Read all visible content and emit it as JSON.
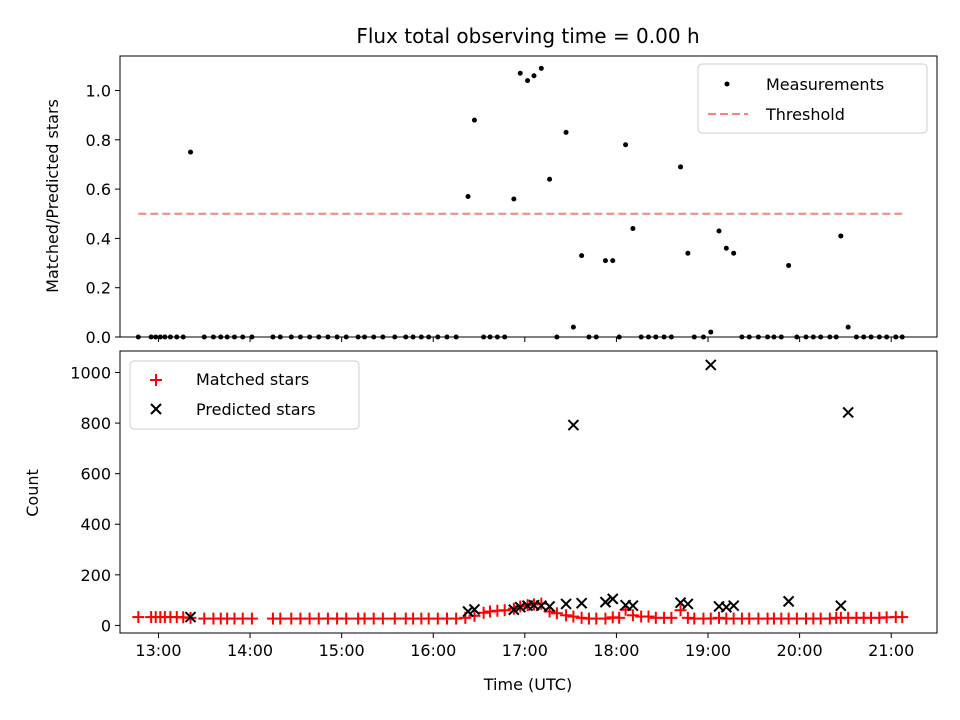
{
  "chart_data": [
    {
      "type": "scatter",
      "title": "Flux total observing time = 0.00 h",
      "xlabel": "",
      "ylabel": "Matched/Predicted stars",
      "xlim": [
        12.58,
        21.5
      ],
      "ylim": [
        0,
        1.14
      ],
      "xticks": [
        13,
        14,
        15,
        16,
        17,
        18,
        19,
        20,
        21
      ],
      "xtick_labels": [
        "",
        "",
        "",
        "",
        "",
        "",
        "",
        "",
        ""
      ],
      "yticks": [
        0,
        0.2,
        0.4,
        0.6,
        0.8,
        1.0
      ],
      "ytick_labels": [
        "0.0",
        "0.2",
        "0.4",
        "0.6",
        "0.8",
        "1.0"
      ],
      "legend_position": "top-right",
      "series": [
        {
          "name": "Measurements",
          "style": "dot",
          "color": "#000000",
          "points": [
            [
              12.78,
              0
            ],
            [
              12.92,
              0
            ],
            [
              12.97,
              0
            ],
            [
              13.02,
              0
            ],
            [
              13.07,
              0
            ],
            [
              13.13,
              0
            ],
            [
              13.2,
              0
            ],
            [
              13.27,
              0
            ],
            [
              13.35,
              0.75
            ],
            [
              13.5,
              0
            ],
            [
              13.6,
              0
            ],
            [
              13.68,
              0
            ],
            [
              13.75,
              0
            ],
            [
              13.83,
              0
            ],
            [
              13.92,
              0
            ],
            [
              14.02,
              0
            ],
            [
              14.25,
              0
            ],
            [
              14.33,
              0
            ],
            [
              14.45,
              0
            ],
            [
              14.55,
              0
            ],
            [
              14.65,
              0
            ],
            [
              14.75,
              0
            ],
            [
              14.85,
              0
            ],
            [
              14.95,
              0
            ],
            [
              15.05,
              0
            ],
            [
              15.18,
              0
            ],
            [
              15.25,
              0
            ],
            [
              15.35,
              0
            ],
            [
              15.45,
              0
            ],
            [
              15.58,
              0
            ],
            [
              15.7,
              0
            ],
            [
              15.78,
              0
            ],
            [
              15.87,
              0
            ],
            [
              15.95,
              0
            ],
            [
              16.05,
              0
            ],
            [
              16.15,
              0
            ],
            [
              16.25,
              0
            ],
            [
              16.38,
              0.57
            ],
            [
              16.45,
              0.88
            ],
            [
              16.55,
              0
            ],
            [
              16.62,
              0
            ],
            [
              16.7,
              0
            ],
            [
              16.78,
              0
            ],
            [
              16.88,
              0.56
            ],
            [
              16.95,
              1.07
            ],
            [
              17.03,
              1.04
            ],
            [
              17.1,
              1.06
            ],
            [
              17.18,
              1.09
            ],
            [
              17.27,
              0.64
            ],
            [
              17.35,
              0
            ],
            [
              17.45,
              0.83
            ],
            [
              17.53,
              0.04
            ],
            [
              17.62,
              0.33
            ],
            [
              17.7,
              0
            ],
            [
              17.78,
              0
            ],
            [
              17.88,
              0.31
            ],
            [
              17.96,
              0.31
            ],
            [
              18.03,
              0
            ],
            [
              18.1,
              0.78
            ],
            [
              18.18,
              0.44
            ],
            [
              18.27,
              0
            ],
            [
              18.35,
              0
            ],
            [
              18.43,
              0
            ],
            [
              18.52,
              0
            ],
            [
              18.6,
              0
            ],
            [
              18.7,
              0.69
            ],
            [
              18.78,
              0.34
            ],
            [
              18.85,
              0
            ],
            [
              18.95,
              0
            ],
            [
              19.03,
              0.02
            ],
            [
              19.12,
              0.43
            ],
            [
              19.2,
              0.36
            ],
            [
              19.28,
              0.34
            ],
            [
              19.37,
              0
            ],
            [
              19.45,
              0
            ],
            [
              19.55,
              0
            ],
            [
              19.65,
              0
            ],
            [
              19.72,
              0
            ],
            [
              19.8,
              0
            ],
            [
              19.88,
              0.29
            ],
            [
              19.97,
              0
            ],
            [
              20.07,
              0
            ],
            [
              20.15,
              0
            ],
            [
              20.23,
              0
            ],
            [
              20.33,
              0
            ],
            [
              20.4,
              0
            ],
            [
              20.45,
              0.41
            ],
            [
              20.53,
              0.04
            ],
            [
              20.62,
              0
            ],
            [
              20.7,
              0
            ],
            [
              20.78,
              0
            ],
            [
              20.87,
              0
            ],
            [
              20.95,
              0
            ],
            [
              21.05,
              0
            ],
            [
              21.12,
              0
            ]
          ]
        },
        {
          "name": "Threshold",
          "style": "dashed-line",
          "color": "#ff7f7f",
          "points": [
            [
              12.78,
              0.5
            ],
            [
              21.12,
              0.5
            ]
          ]
        }
      ]
    },
    {
      "type": "scatter",
      "title": "",
      "xlabel": "Time (UTC)",
      "ylabel": "Count",
      "xlim": [
        12.58,
        21.5
      ],
      "ylim": [
        -30,
        1085
      ],
      "xticks": [
        13,
        14,
        15,
        16,
        17,
        18,
        19,
        20,
        21
      ],
      "xtick_labels": [
        "13:00",
        "14:00",
        "15:00",
        "16:00",
        "17:00",
        "18:00",
        "19:00",
        "20:00",
        "21:00"
      ],
      "yticks": [
        0,
        200,
        400,
        600,
        800,
        1000
      ],
      "ytick_labels": [
        "0",
        "200",
        "400",
        "600",
        "800",
        "1000"
      ],
      "legend_position": "top-left",
      "series": [
        {
          "name": "Matched stars",
          "style": "plus",
          "color": "#ff0000",
          "points": [
            [
              12.78,
              33
            ],
            [
              12.92,
              33
            ],
            [
              12.97,
              33
            ],
            [
              13.02,
              33
            ],
            [
              13.07,
              33
            ],
            [
              13.13,
              33
            ],
            [
              13.2,
              33
            ],
            [
              13.27,
              32
            ],
            [
              13.35,
              30
            ],
            [
              13.5,
              27
            ],
            [
              13.6,
              27
            ],
            [
              13.68,
              27
            ],
            [
              13.75,
              27
            ],
            [
              13.83,
              27
            ],
            [
              13.92,
              27
            ],
            [
              14.02,
              27
            ],
            [
              14.25,
              27
            ],
            [
              14.33,
              27
            ],
            [
              14.45,
              27
            ],
            [
              14.55,
              27
            ],
            [
              14.65,
              27
            ],
            [
              14.75,
              27
            ],
            [
              14.85,
              27
            ],
            [
              14.95,
              27
            ],
            [
              15.05,
              27
            ],
            [
              15.18,
              27
            ],
            [
              15.25,
              27
            ],
            [
              15.35,
              27
            ],
            [
              15.45,
              27
            ],
            [
              15.58,
              27
            ],
            [
              15.7,
              27
            ],
            [
              15.78,
              27
            ],
            [
              15.87,
              27
            ],
            [
              15.95,
              27
            ],
            [
              16.05,
              27
            ],
            [
              16.15,
              27
            ],
            [
              16.25,
              27
            ],
            [
              16.35,
              30
            ],
            [
              16.45,
              38
            ],
            [
              16.55,
              50
            ],
            [
              16.62,
              55
            ],
            [
              16.7,
              58
            ],
            [
              16.78,
              60
            ],
            [
              16.88,
              66
            ],
            [
              16.95,
              75
            ],
            [
              17.03,
              80
            ],
            [
              17.1,
              83
            ],
            [
              17.18,
              86
            ],
            [
              17.27,
              55
            ],
            [
              17.35,
              48
            ],
            [
              17.45,
              40
            ],
            [
              17.53,
              35
            ],
            [
              17.62,
              30
            ],
            [
              17.7,
              27
            ],
            [
              17.78,
              27
            ],
            [
              17.88,
              27
            ],
            [
              17.96,
              32
            ],
            [
              18.03,
              30
            ],
            [
              18.1,
              62
            ],
            [
              18.18,
              40
            ],
            [
              18.27,
              35
            ],
            [
              18.35,
              35
            ],
            [
              18.43,
              30
            ],
            [
              18.52,
              30
            ],
            [
              18.6,
              30
            ],
            [
              18.7,
              60
            ],
            [
              18.78,
              30
            ],
            [
              18.85,
              27
            ],
            [
              18.95,
              27
            ],
            [
              19.03,
              27
            ],
            [
              19.12,
              30
            ],
            [
              19.2,
              27
            ],
            [
              19.28,
              27
            ],
            [
              19.37,
              27
            ],
            [
              19.45,
              27
            ],
            [
              19.55,
              27
            ],
            [
              19.65,
              27
            ],
            [
              19.72,
              27
            ],
            [
              19.8,
              27
            ],
            [
              19.88,
              27
            ],
            [
              19.97,
              27
            ],
            [
              20.07,
              27
            ],
            [
              20.15,
              27
            ],
            [
              20.23,
              27
            ],
            [
              20.33,
              27
            ],
            [
              20.4,
              30
            ],
            [
              20.45,
              30
            ],
            [
              20.53,
              30
            ],
            [
              20.62,
              30
            ],
            [
              20.7,
              30
            ],
            [
              20.78,
              30
            ],
            [
              20.87,
              30
            ],
            [
              20.95,
              32
            ],
            [
              21.05,
              33
            ],
            [
              21.12,
              33
            ]
          ]
        },
        {
          "name": "Predicted stars",
          "style": "x",
          "color": "#000000",
          "points": [
            [
              13.35,
              33
            ],
            [
              16.38,
              55
            ],
            [
              16.45,
              63
            ],
            [
              16.88,
              62
            ],
            [
              16.95,
              72
            ],
            [
              17.03,
              78
            ],
            [
              17.1,
              80
            ],
            [
              17.18,
              78
            ],
            [
              17.27,
              75
            ],
            [
              17.45,
              85
            ],
            [
              17.53,
              792
            ],
            [
              17.62,
              88
            ],
            [
              17.88,
              92
            ],
            [
              17.96,
              105
            ],
            [
              18.1,
              80
            ],
            [
              18.18,
              78
            ],
            [
              18.7,
              90
            ],
            [
              18.78,
              85
            ],
            [
              19.03,
              1030
            ],
            [
              19.12,
              75
            ],
            [
              19.2,
              72
            ],
            [
              19.28,
              78
            ],
            [
              19.88,
              95
            ],
            [
              20.45,
              78
            ],
            [
              20.53,
              842
            ]
          ]
        }
      ]
    }
  ]
}
